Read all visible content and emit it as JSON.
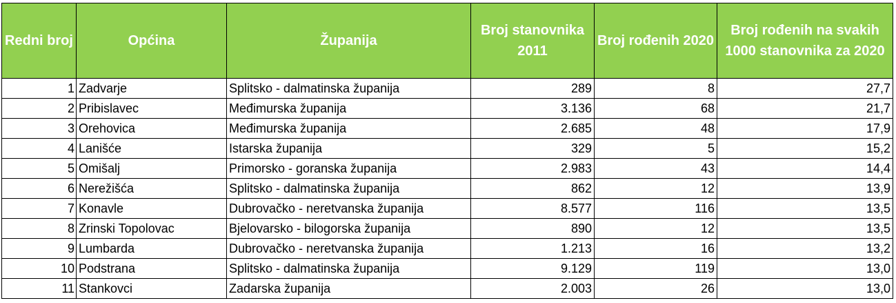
{
  "header": {
    "col1": "Redni broj",
    "col2": "Općina",
    "col3": "Županija",
    "col4": "Broj stanovnika 2011",
    "col5": "Broj rođenih 2020",
    "col6": "Broj rođenih na svakih 1000 stanovnika za 2020"
  },
  "header_color": "#92d050",
  "rows": [
    {
      "rb": "1",
      "opcina": "Zadvarje",
      "zupanija": "Splitsko - dalmatinska županija",
      "stanovnika": "289",
      "rodjenih": "8",
      "na1000": "27,7"
    },
    {
      "rb": "2",
      "opcina": "Pribislavec",
      "zupanija": "Međimurska županija",
      "stanovnika": "3.136",
      "rodjenih": "68",
      "na1000": "21,7"
    },
    {
      "rb": "3",
      "opcina": "Orehovica",
      "zupanija": "Međimurska županija",
      "stanovnika": "2.685",
      "rodjenih": "48",
      "na1000": "17,9"
    },
    {
      "rb": "4",
      "opcina": "Lanišće",
      "zupanija": "Istarska županija",
      "stanovnika": "329",
      "rodjenih": "5",
      "na1000": "15,2"
    },
    {
      "rb": "5",
      "opcina": "Omišalj",
      "zupanija": "Primorsko - goranska županija",
      "stanovnika": "2.983",
      "rodjenih": "43",
      "na1000": "14,4"
    },
    {
      "rb": "6",
      "opcina": "Nerežišća",
      "zupanija": "Splitsko - dalmatinska županija",
      "stanovnika": "862",
      "rodjenih": "12",
      "na1000": "13,9"
    },
    {
      "rb": "7",
      "opcina": "Konavle",
      "zupanija": "Dubrovačko - neretvanska županija",
      "stanovnika": "8.577",
      "rodjenih": "116",
      "na1000": "13,5"
    },
    {
      "rb": "8",
      "opcina": "Zrinski Topolovac",
      "zupanija": "Bjelovarsko - bilogorska županija",
      "stanovnika": "890",
      "rodjenih": "12",
      "na1000": "13,5"
    },
    {
      "rb": "9",
      "opcina": "Lumbarda",
      "zupanija": "Dubrovačko - neretvanska županija",
      "stanovnika": "1.213",
      "rodjenih": "16",
      "na1000": "13,2"
    },
    {
      "rb": "10",
      "opcina": "Podstrana",
      "zupanija": "Splitsko - dalmatinska županija",
      "stanovnika": "9.129",
      "rodjenih": "119",
      "na1000": "13,0"
    },
    {
      "rb": "11",
      "opcina": "Stankovci",
      "zupanija": "Zadarska županija",
      "stanovnika": "2.003",
      "rodjenih": "26",
      "na1000": "13,0"
    }
  ]
}
